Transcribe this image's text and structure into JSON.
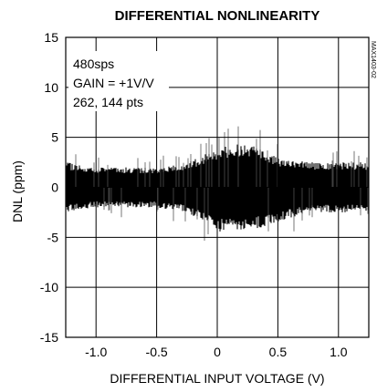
{
  "chart_data": {
    "type": "scatter",
    "title": "DIFFERENTIAL NONLINEARITY",
    "xlabel": "DIFFERENTIAL INPUT VOLTAGE (V)",
    "ylabel": "DNL (ppm)",
    "xlim": [
      -1.25,
      1.25
    ],
    "ylim": [
      -15,
      15
    ],
    "x_ticks": [
      -1.0,
      -0.5,
      0,
      0.5,
      1.0
    ],
    "x_tick_labels": [
      "-1.0",
      "-0.5",
      "0",
      "0.5",
      "1.0"
    ],
    "y_ticks": [
      15,
      10,
      5,
      0,
      -5,
      -10,
      -15
    ],
    "y_tick_labels": [
      "15",
      "10",
      "5",
      "0",
      "-5",
      "-10",
      "-15"
    ],
    "grid": true,
    "annotations": [
      "480sps",
      "GAIN = +1V/V",
      "262, 144 pts"
    ],
    "side_label": "MAX1403-02",
    "series": [
      {
        "x": [
          -1.25,
          -1.0,
          -0.75,
          -0.5,
          -0.25,
          0,
          0.25,
          0.5,
          0.75,
          1.0,
          1.25
        ],
        "y_upper": [
          2.5,
          2.0,
          2.0,
          2.0,
          2.5,
          4.0,
          4.5,
          3.0,
          2.5,
          2.5,
          2.5
        ],
        "y_lower": [
          -2.5,
          -2.0,
          -2.0,
          -2.0,
          -2.5,
          -4.5,
          -4.5,
          -3.5,
          -2.5,
          -2.5,
          -2.5
        ]
      }
    ]
  }
}
